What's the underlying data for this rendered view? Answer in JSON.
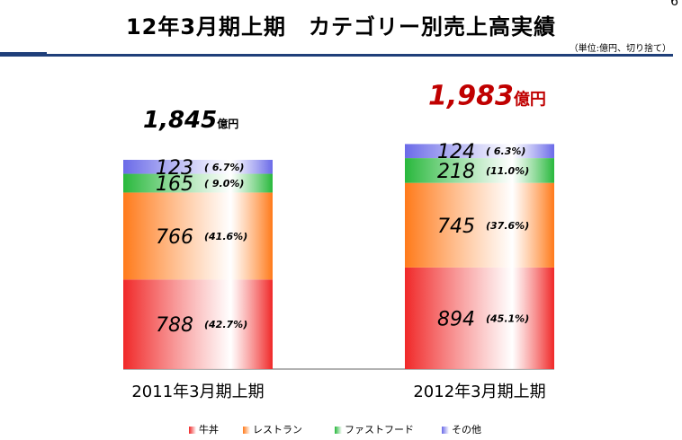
{
  "header": {
    "title": "12年3月期上期　カテゴリー別売上高実績",
    "unit_note": "（単位:億円、切り捨て）",
    "corner_mark": "6"
  },
  "chart_data": {
    "type": "bar",
    "stacked": true,
    "categories": [
      "2011年3月期上期",
      "2012年3月期上期"
    ],
    "totals": [
      {
        "value": "1,845",
        "unit": "億円",
        "color": "#000000"
      },
      {
        "value": "1,983",
        "unit": "億円",
        "color": "#c00000"
      }
    ],
    "series": [
      {
        "name": "牛丼",
        "values": [
          788,
          894
        ],
        "pct": [
          "(42.7%)",
          "(45.1%)"
        ],
        "color": "#f02828"
      },
      {
        "name": "レストラン",
        "values": [
          766,
          745
        ],
        "pct": [
          "(41.6%)",
          "(37.6%)"
        ],
        "color": "#ff7a1a"
      },
      {
        "name": "ファストフード",
        "values": [
          165,
          218
        ],
        "pct": [
          "(  9.0%)",
          "(11.0%)"
        ],
        "color": "#28b83c"
      },
      {
        "name": "その他",
        "values": [
          123,
          124
        ],
        "pct": [
          "(  6.7%)",
          "(  6.3%)"
        ],
        "color": "#6a6ae8"
      }
    ],
    "legend_position": "bottom",
    "grid": false
  }
}
